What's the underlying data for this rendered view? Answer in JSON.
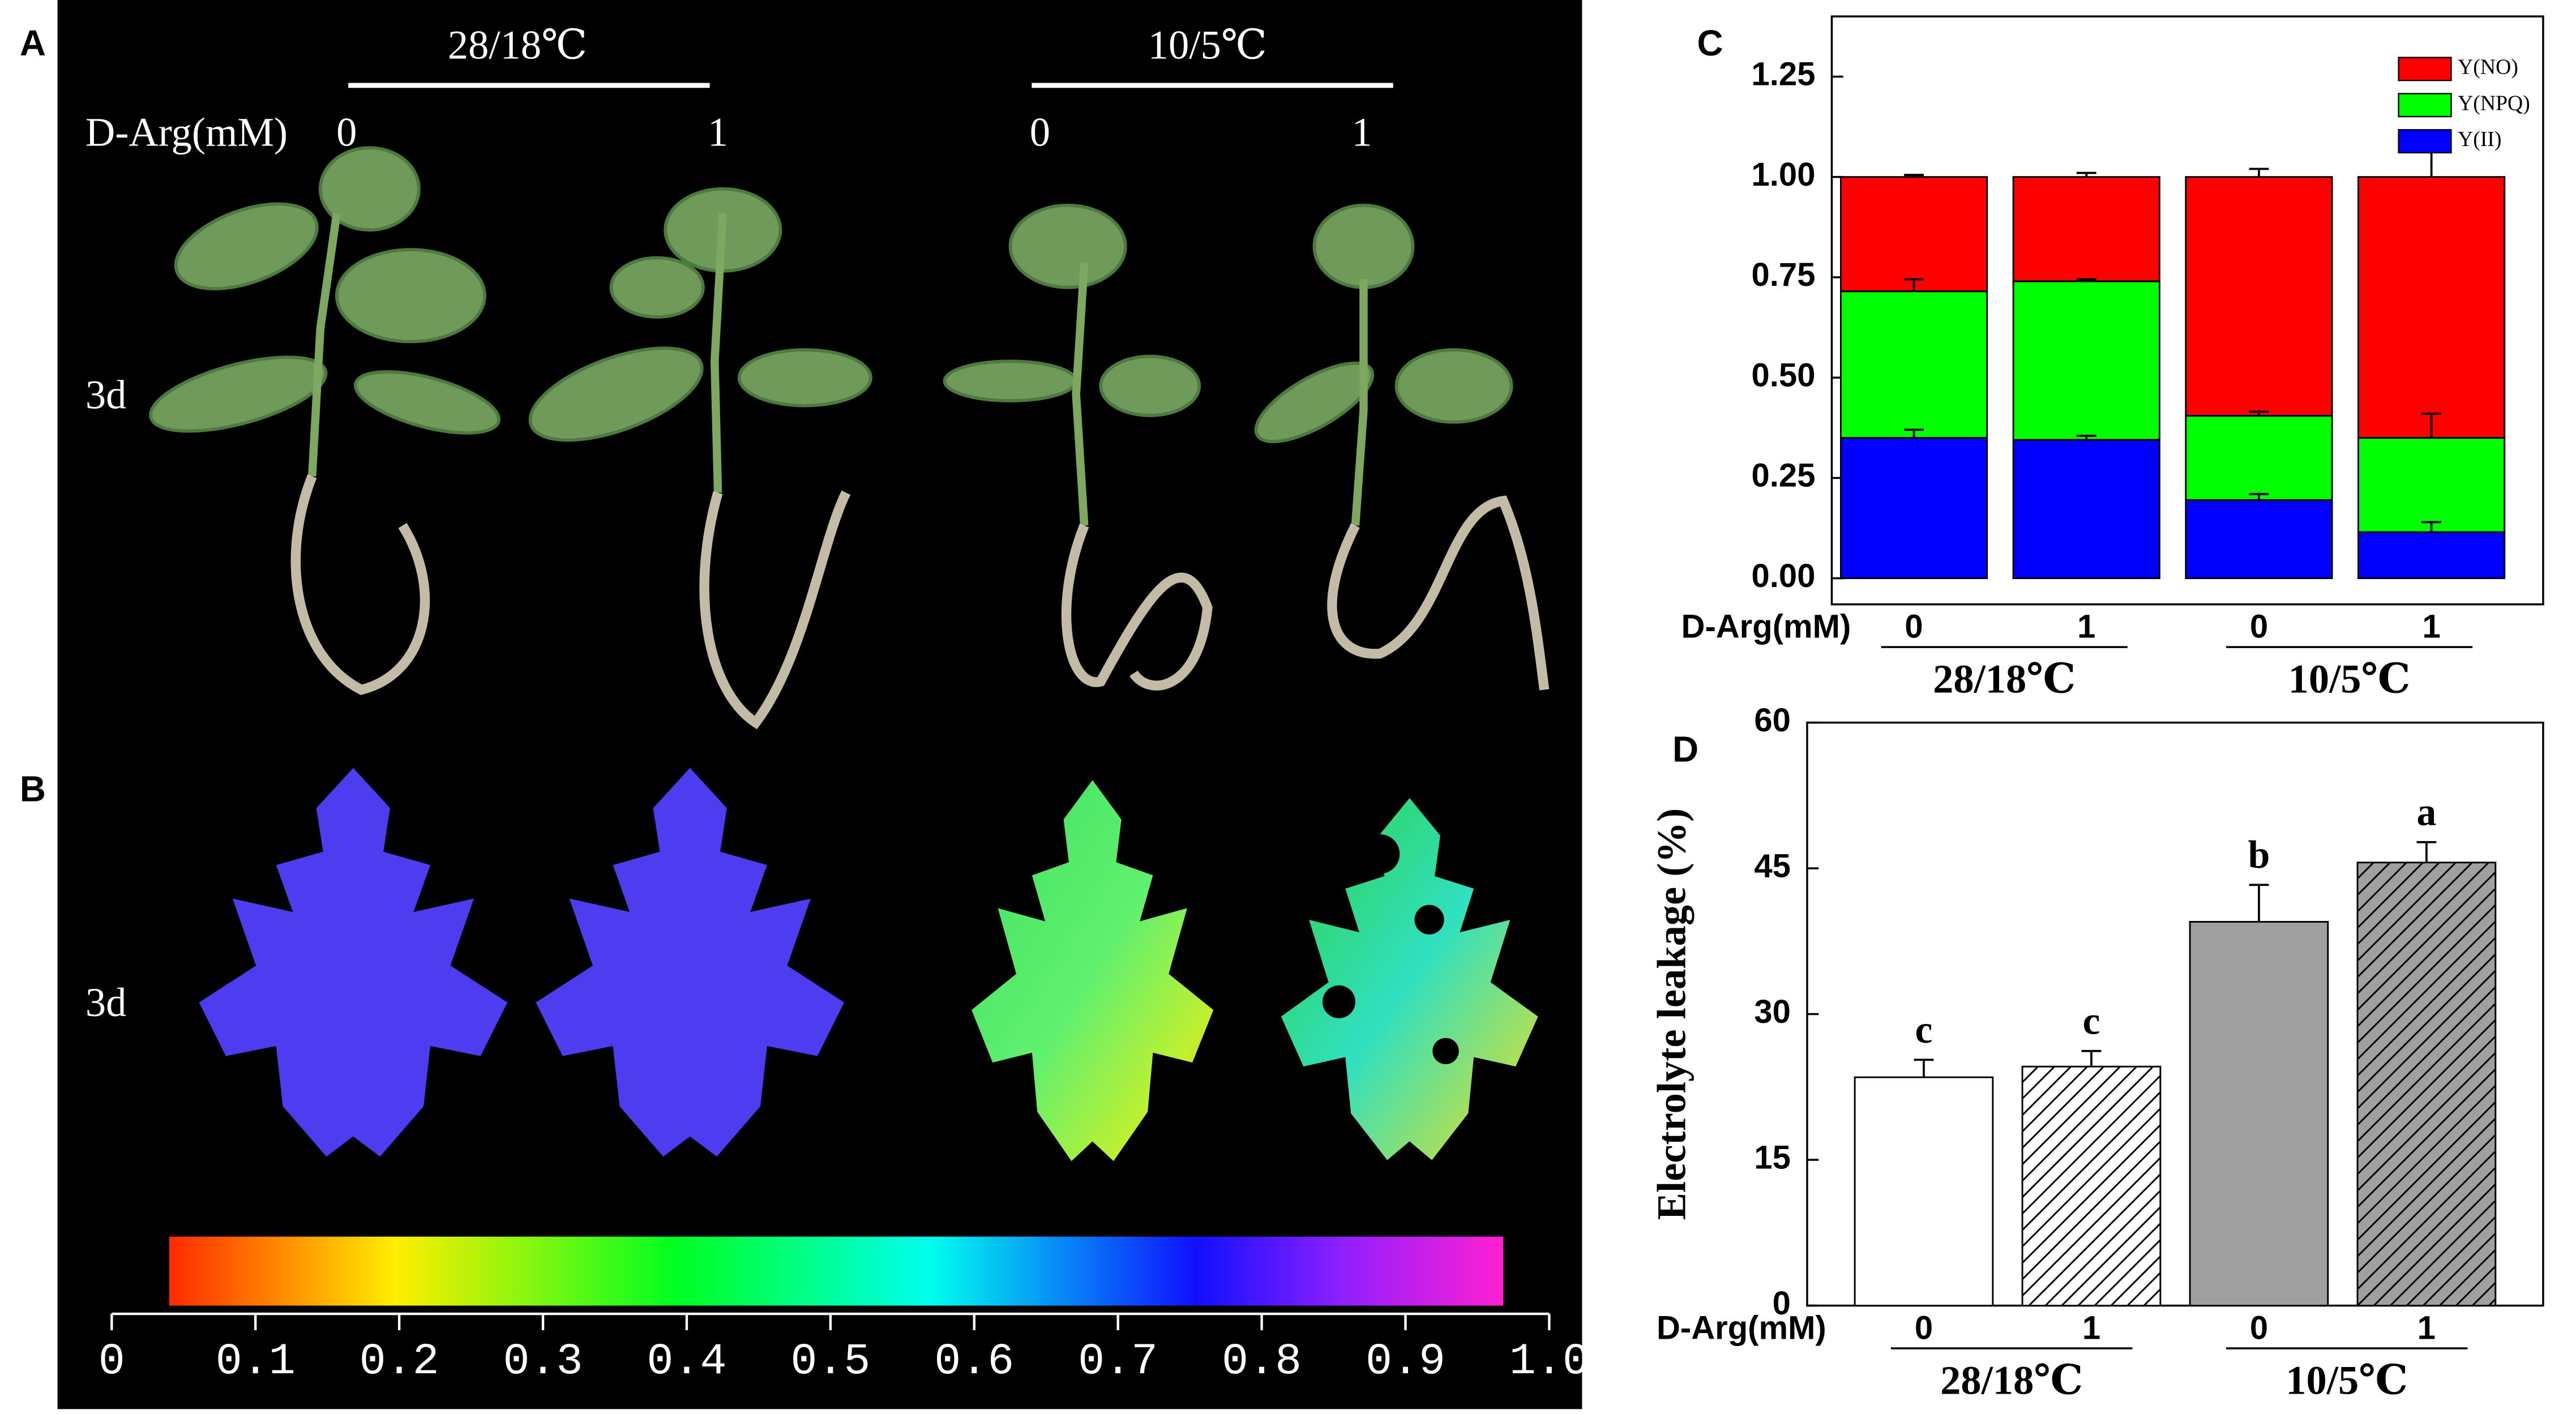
{
  "photo": {
    "panel_label": "A",
    "temperatures": [
      "28/18℃",
      "10/5℃"
    ],
    "treatment_label": "D-Arg(mM)",
    "doses": [
      "0",
      "1",
      "0",
      "1"
    ],
    "time": "3d"
  },
  "fluorescence": {
    "panel_label": "B",
    "time": "3d",
    "colorbar_ticks": [
      0,
      0.1,
      0.2,
      0.3,
      0.4,
      0.5,
      0.6,
      0.7,
      0.8,
      0.9,
      {
        "value": 1,
        "label": "1.0"
      }
    ]
  },
  "chart_data": [
    {
      "type": "stacked_bar",
      "panel_label": "C",
      "x_label": "D-Arg(mM)",
      "categories": [
        "0",
        "1",
        "0",
        "1"
      ],
      "groups": [
        "28/18℃",
        "10/5℃"
      ],
      "series": [
        {
          "name": "Y(II)",
          "color": "#0000ff",
          "values": [
            0.35,
            0.345,
            0.195,
            0.115
          ],
          "errors": [
            0.02,
            0.01,
            0.015,
            0.025
          ]
        },
        {
          "name": "Y(NPQ)",
          "color": "#00ff00",
          "values": [
            0.365,
            0.395,
            0.21,
            0.235
          ],
          "errors": [
            0.03,
            0.005,
            0.01,
            0.06
          ]
        },
        {
          "name": "Y(NO)",
          "color": "#ff0000",
          "values": [
            0.285,
            0.26,
            0.595,
            0.65
          ],
          "errors": [
            0.005,
            0.01,
            0.02,
            0.085
          ]
        }
      ],
      "ylim": [
        -0.065,
        1.4
      ],
      "yticks": [
        {
          "value": 0,
          "label": "0.00"
        },
        {
          "value": 0.25,
          "label": "0.25"
        },
        {
          "value": 0.5,
          "label": "0.50"
        },
        {
          "value": 0.75,
          "label": "0.75"
        },
        {
          "value": 1,
          "label": "1.00"
        },
        {
          "value": 1.25,
          "label": "1.25"
        }
      ],
      "legend": "top-right"
    },
    {
      "type": "bar",
      "panel_label": "D",
      "y_label": "Electrolyte leakage (%)",
      "x_label": "D-Arg(mM)",
      "categories": [
        "0",
        "1",
        "0",
        "1"
      ],
      "groups": [
        "28/18℃",
        "10/5℃"
      ],
      "values": [
        23.5,
        24.6,
        39.5,
        45.6
      ],
      "errors": [
        1.8,
        1.6,
        3.8,
        2.1
      ],
      "annotations": [
        "c",
        "c",
        "b",
        "a"
      ],
      "colors": [
        "#ffffff",
        "#ffffff",
        "#a0a0a0",
        "#a0a0a0"
      ],
      "hatch": [
        false,
        true,
        false,
        true
      ],
      "ylim": [
        0,
        60
      ],
      "yticks": [
        0,
        15,
        30,
        45,
        60
      ]
    }
  ]
}
